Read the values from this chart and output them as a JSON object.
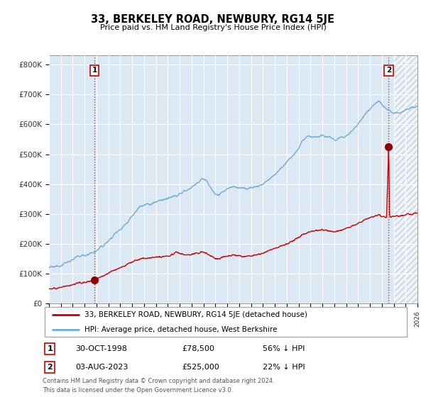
{
  "title": "33, BERKELEY ROAD, NEWBURY, RG14 5JE",
  "subtitle": "Price paid vs. HM Land Registry's House Price Index (HPI)",
  "sale1_date": "30-OCT-1998",
  "sale1_price": 78500,
  "sale1_label": "56% ↓ HPI",
  "sale2_date": "03-AUG-2023",
  "sale2_price": 525000,
  "sale2_label": "22% ↓ HPI",
  "legend_line1": "33, BERKELEY ROAD, NEWBURY, RG14 5JE (detached house)",
  "legend_line2": "HPI: Average price, detached house, West Berkshire",
  "footnote": "Contains HM Land Registry data © Crown copyright and database right 2024.\nThis data is licensed under the Open Government Licence v3.0.",
  "hpi_color": "#6baed6",
  "price_color": "#cc0000",
  "plot_bg": "#dce9f5",
  "ylim": [
    0,
    830000
  ],
  "xlim_start": 1995.0,
  "xlim_end": 2026.0,
  "hatch_start": 2024.0,
  "sale1_x": 1998.83,
  "sale2_x": 2023.58
}
